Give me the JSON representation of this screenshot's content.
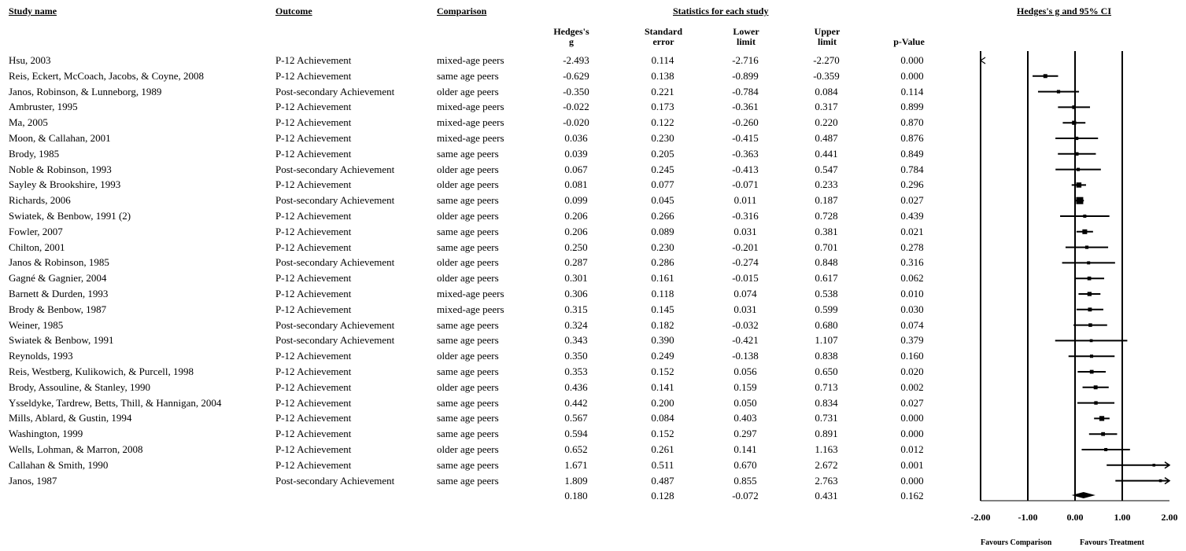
{
  "headers": {
    "study_name": "Study name",
    "outcome": "Outcome",
    "comparison": "Comparison",
    "stats_group": "Statistics for each study",
    "ci_group": "Hedges's g and 95% CI",
    "g_line1": "Hedges's",
    "g_line2": "g",
    "se_line1": "Standard",
    "se_line2": "error",
    "lower_line1": "Lower",
    "lower_line2": "limit",
    "upper_line1": "Upper",
    "upper_line2": "limit",
    "p": "p-Value"
  },
  "chart_data": {
    "type": "forest",
    "title": "Hedges's g and 95% CI",
    "xlim": [
      -2.0,
      2.0
    ],
    "x_ticks": [
      "-2.00",
      "-1.00",
      "0.00",
      "1.00",
      "2.00"
    ],
    "favours_left": "Favours Comparison",
    "favours_right": "Favours Treatment",
    "studies": [
      {
        "name": "Hsu, 2003",
        "outcome": "P-12 Achievement",
        "comparison": "mixed-age peers",
        "g": "-2.493",
        "se": "0.114",
        "lower": "-2.716",
        "upper": "-2.270",
        "p": "0.000"
      },
      {
        "name": "Reis, Eckert, McCoach, Jacobs, & Coyne, 2008",
        "outcome": "P-12 Achievement",
        "comparison": "same age peers",
        "g": "-0.629",
        "se": "0.138",
        "lower": "-0.899",
        "upper": "-0.359",
        "p": "0.000"
      },
      {
        "name": "Janos, Robinson, & Lunneborg, 1989",
        "outcome": "Post-secondary Achievement",
        "comparison": "older age peers",
        "g": "-0.350",
        "se": "0.221",
        "lower": "-0.784",
        "upper": "0.084",
        "p": "0.114"
      },
      {
        "name": "Ambruster, 1995",
        "outcome": "P-12 Achievement",
        "comparison": "mixed-age peers",
        "g": "-0.022",
        "se": "0.173",
        "lower": "-0.361",
        "upper": "0.317",
        "p": "0.899"
      },
      {
        "name": "Ma, 2005",
        "outcome": "P-12 Achievement",
        "comparison": "mixed-age peers",
        "g": "-0.020",
        "se": "0.122",
        "lower": "-0.260",
        "upper": "0.220",
        "p": "0.870"
      },
      {
        "name": "Moon, & Callahan, 2001",
        "outcome": "P-12 Achievement",
        "comparison": "mixed-age peers",
        "g": "0.036",
        "se": "0.230",
        "lower": "-0.415",
        "upper": "0.487",
        "p": "0.876"
      },
      {
        "name": "Brody, 1985",
        "outcome": "P-12 Achievement",
        "comparison": "same age peers",
        "g": "0.039",
        "se": "0.205",
        "lower": "-0.363",
        "upper": "0.441",
        "p": "0.849"
      },
      {
        "name": "Noble & Robinson, 1993",
        "outcome": "Post-secondary Achievement",
        "comparison": "older age peers",
        "g": "0.067",
        "se": "0.245",
        "lower": "-0.413",
        "upper": "0.547",
        "p": "0.784"
      },
      {
        "name": "Sayley & Brookshire, 1993",
        "outcome": "P-12 Achievement",
        "comparison": "older age peers",
        "g": "0.081",
        "se": "0.077",
        "lower": "-0.071",
        "upper": "0.233",
        "p": "0.296"
      },
      {
        "name": "Richards, 2006",
        "outcome": "Post-secondary Achievement",
        "comparison": "same age peers",
        "g": "0.099",
        "se": "0.045",
        "lower": "0.011",
        "upper": "0.187",
        "p": "0.027"
      },
      {
        "name": "Swiatek, & Benbow, 1991 (2)",
        "outcome": "P-12 Achievement",
        "comparison": "older age peers",
        "g": "0.206",
        "se": "0.266",
        "lower": "-0.316",
        "upper": "0.728",
        "p": "0.439"
      },
      {
        "name": "Fowler, 2007",
        "outcome": "P-12 Achievement",
        "comparison": "same age peers",
        "g": "0.206",
        "se": "0.089",
        "lower": "0.031",
        "upper": "0.381",
        "p": "0.021"
      },
      {
        "name": "Chilton, 2001",
        "outcome": "P-12 Achievement",
        "comparison": "same age peers",
        "g": "0.250",
        "se": "0.230",
        "lower": "-0.201",
        "upper": "0.701",
        "p": "0.278"
      },
      {
        "name": "Janos & Robinson, 1985",
        "outcome": "Post-secondary Achievement",
        "comparison": "older age peers",
        "g": "0.287",
        "se": "0.286",
        "lower": "-0.274",
        "upper": "0.848",
        "p": "0.316"
      },
      {
        "name": "Gagné & Gagnier, 2004",
        "outcome": "P-12 Achievement",
        "comparison": "older age peers",
        "g": "0.301",
        "se": "0.161",
        "lower": "-0.015",
        "upper": "0.617",
        "p": "0.062"
      },
      {
        "name": "Barnett & Durden, 1993",
        "outcome": "P-12 Achievement",
        "comparison": "mixed-age peers",
        "g": "0.306",
        "se": "0.118",
        "lower": "0.074",
        "upper": "0.538",
        "p": "0.010"
      },
      {
        "name": "Brody & Benbow, 1987",
        "outcome": "P-12 Achievement",
        "comparison": "mixed-age peers",
        "g": "0.315",
        "se": "0.145",
        "lower": "0.031",
        "upper": "0.599",
        "p": "0.030"
      },
      {
        "name": "Weiner, 1985",
        "outcome": "Post-secondary Achievement",
        "comparison": "same age peers",
        "g": "0.324",
        "se": "0.182",
        "lower": "-0.032",
        "upper": "0.680",
        "p": "0.074"
      },
      {
        "name": "Swiatek & Benbow, 1991",
        "outcome": "Post-secondary Achievement",
        "comparison": "same age peers",
        "g": "0.343",
        "se": "0.390",
        "lower": "-0.421",
        "upper": "1.107",
        "p": "0.379"
      },
      {
        "name": "Reynolds, 1993",
        "outcome": "P-12 Achievement",
        "comparison": "older age peers",
        "g": "0.350",
        "se": "0.249",
        "lower": "-0.138",
        "upper": "0.838",
        "p": "0.160"
      },
      {
        "name": "Reis, Westberg, Kulikowich, & Purcell, 1998",
        "outcome": "P-12 Achievement",
        "comparison": "same age peers",
        "g": "0.353",
        "se": "0.152",
        "lower": "0.056",
        "upper": "0.650",
        "p": "0.020"
      },
      {
        "name": "Brody, Assouline, & Stanley, 1990",
        "outcome": "P-12 Achievement",
        "comparison": "older age peers",
        "g": "0.436",
        "se": "0.141",
        "lower": "0.159",
        "upper": "0.713",
        "p": "0.002"
      },
      {
        "name": "Ysseldyke, Tardrew, Betts, Thill, & Hannigan, 2004",
        "outcome": "P-12 Achievement",
        "comparison": "same age peers",
        "g": "0.442",
        "se": "0.200",
        "lower": "0.050",
        "upper": "0.834",
        "p": "0.027"
      },
      {
        "name": "Mills, Ablard, & Gustin, 1994",
        "outcome": "P-12 Achievement",
        "comparison": "same age peers",
        "g": "0.567",
        "se": "0.084",
        "lower": "0.403",
        "upper": "0.731",
        "p": "0.000"
      },
      {
        "name": "Washington, 1999",
        "outcome": "P-12 Achievement",
        "comparison": "same age peers",
        "g": "0.594",
        "se": "0.152",
        "lower": "0.297",
        "upper": "0.891",
        "p": "0.000"
      },
      {
        "name": "Wells, Lohman, & Marron, 2008",
        "outcome": "P-12 Achievement",
        "comparison": "older age peers",
        "g": "0.652",
        "se": "0.261",
        "lower": "0.141",
        "upper": "1.163",
        "p": "0.012"
      },
      {
        "name": "Callahan & Smith, 1990",
        "outcome": "P-12 Achievement",
        "comparison": "same age peers",
        "g": "1.671",
        "se": "0.511",
        "lower": "0.670",
        "upper": "2.672",
        "p": "0.001"
      },
      {
        "name": "Janos, 1987",
        "outcome": "Post-secondary Achievement",
        "comparison": "same age peers",
        "g": "1.809",
        "se": "0.487",
        "lower": "0.855",
        "upper": "2.763",
        "p": "0.000"
      }
    ],
    "summary": {
      "g": "0.180",
      "se": "0.128",
      "lower": "-0.072",
      "upper": "0.431",
      "p": "0.162"
    }
  }
}
